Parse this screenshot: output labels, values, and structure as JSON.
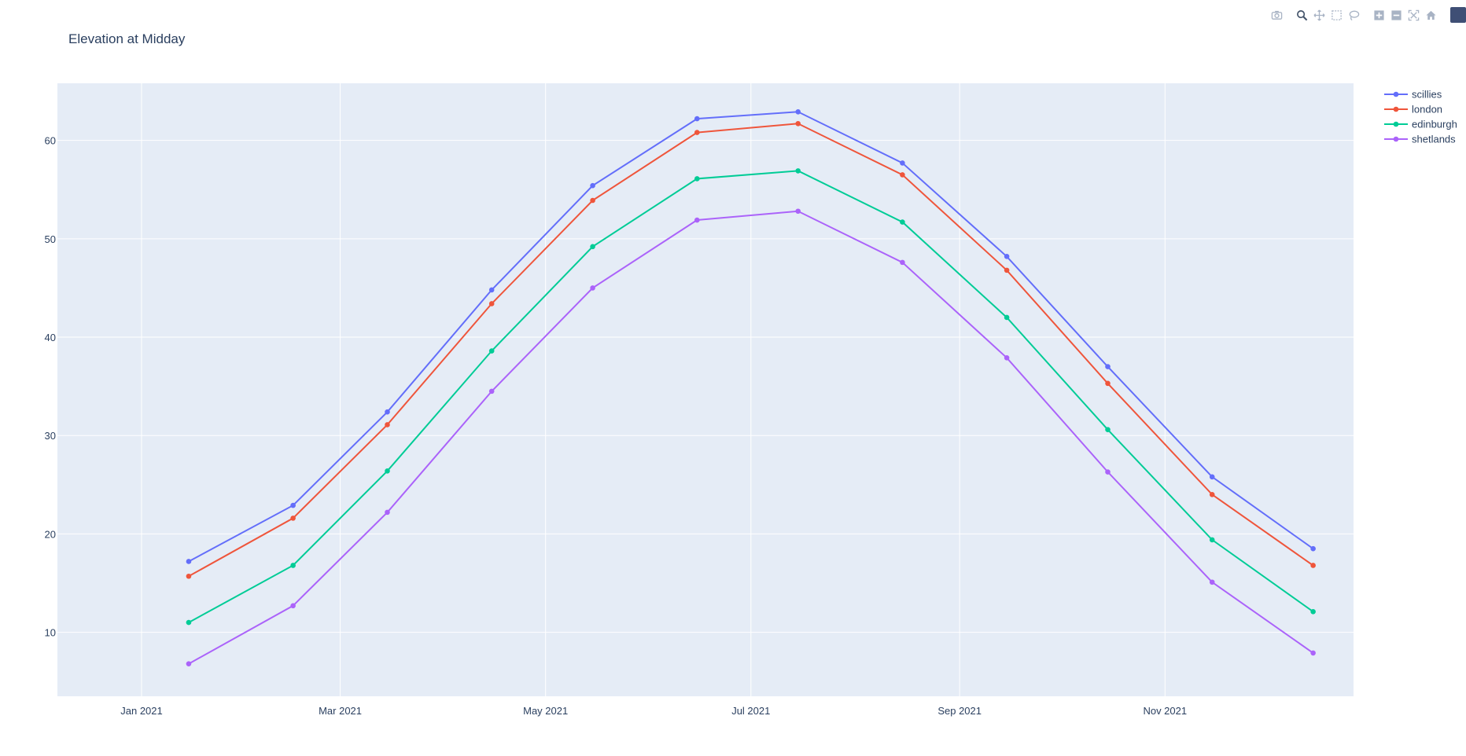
{
  "toolbar": {
    "buttons": [
      "camera-icon",
      "zoom-icon",
      "pan-icon",
      "box-select-icon",
      "lasso-select-icon",
      "zoom-in-icon",
      "zoom-out-icon",
      "autoscale-icon",
      "reset-axes-icon",
      "plotly-logo-icon"
    ],
    "active": "zoom-icon"
  },
  "chart_data": {
    "type": "line",
    "title": "Elevation at Midday",
    "xlabel": "",
    "ylabel": "",
    "x": [
      "2021-01-15",
      "2021-02-15",
      "2021-03-15",
      "2021-04-15",
      "2021-05-15",
      "2021-06-15",
      "2021-07-15",
      "2021-08-15",
      "2021-09-15",
      "2021-10-15",
      "2021-11-15",
      "2021-12-15"
    ],
    "xlim": [
      "2020-12-07",
      "2021-12-27"
    ],
    "ylim": [
      3.5,
      65.8
    ],
    "xticks": [
      {
        "date": "2021-01-01",
        "label": "Jan 2021"
      },
      {
        "date": "2021-03-01",
        "label": "Mar 2021"
      },
      {
        "date": "2021-05-01",
        "label": "May 2021"
      },
      {
        "date": "2021-07-01",
        "label": "Jul 2021"
      },
      {
        "date": "2021-09-01",
        "label": "Sep 2021"
      },
      {
        "date": "2021-11-01",
        "label": "Nov 2021"
      }
    ],
    "yticks": [
      10,
      20,
      30,
      40,
      50,
      60
    ],
    "grid": true,
    "legend_position": "top-right outside",
    "series": [
      {
        "name": "scillies",
        "color": "#636efa",
        "values": [
          17.2,
          22.9,
          32.4,
          44.8,
          55.4,
          62.2,
          62.9,
          57.7,
          48.2,
          37.0,
          25.8,
          18.5
        ]
      },
      {
        "name": "london",
        "color": "#ef553b",
        "values": [
          15.7,
          21.6,
          31.1,
          43.4,
          53.9,
          60.8,
          61.7,
          56.5,
          46.8,
          35.3,
          24.0,
          16.8
        ]
      },
      {
        "name": "edinburgh",
        "color": "#00cc96",
        "values": [
          11.0,
          16.8,
          26.4,
          38.6,
          49.2,
          56.1,
          56.9,
          51.7,
          42.0,
          30.6,
          19.4,
          12.1
        ]
      },
      {
        "name": "shetlands",
        "color": "#ab63fa",
        "values": [
          6.8,
          12.7,
          22.2,
          34.5,
          45.0,
          51.9,
          52.8,
          47.6,
          37.9,
          26.3,
          15.1,
          7.9
        ]
      }
    ]
  }
}
